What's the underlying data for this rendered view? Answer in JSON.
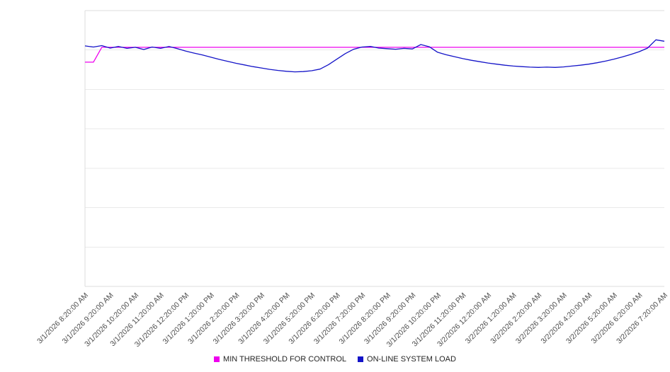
{
  "legend": {
    "items": [
      {
        "label": "MIN THRESHOLD FOR CONTROL",
        "color": "#ee00ee"
      },
      {
        "label": "ON-LINE SYSTEM LOAD",
        "color": "#1414c8"
      }
    ]
  },
  "chart_data": {
    "type": "line",
    "title": "",
    "xlabel": "",
    "ylabel": "",
    "legend_position": "bottom",
    "grid": true,
    "grid_divisions": 7,
    "ylim": [
      0,
      100
    ],
    "y_axis_tick_labels_visible": false,
    "categories": [
      "3/1/2026 8:20:00 AM",
      "3/1/2026 9:20:00 AM",
      "3/1/2026 10:20:00 AM",
      "3/1/2026 11:20:00 AM",
      "3/1/2026 12:20:00 PM",
      "3/1/2026 1:20:00 PM",
      "3/1/2026 2:20:00 PM",
      "3/1/2026 3:20:00 PM",
      "3/1/2026 4:20:00 PM",
      "3/1/2026 5:20:00 PM",
      "3/1/2026 6:20:00 PM",
      "3/1/2026 7:20:00 PM",
      "3/1/2026 8:20:00 PM",
      "3/1/2026 9:20:00 PM",
      "3/1/2026 10:20:00 PM",
      "3/1/2026 11:20:00 PM",
      "3/2/2026 12:20:00 AM",
      "3/2/2026 1:20:00 AM",
      "3/2/2026 2:20:00 AM",
      "3/2/2026 3:20:00 AM",
      "3/2/2026 4:20:00 AM",
      "3/2/2026 5:20:00 AM",
      "3/2/2026 6:20:00 AM",
      "3/2/2026 7:20:00 AM"
    ],
    "points_per_hour": 3,
    "series": [
      {
        "name": "MIN THRESHOLD FOR CONTROL",
        "color": "#ee00ee",
        "values": [
          81.3,
          81.3,
          86.7,
          86.7,
          86.7,
          86.7,
          86.7,
          86.7,
          86.7,
          86.7,
          86.7,
          86.7,
          86.7,
          86.7,
          86.7,
          86.7,
          86.7,
          86.7,
          86.7,
          86.7,
          86.7,
          86.7,
          86.7,
          86.7,
          86.7,
          86.7,
          86.7,
          86.7,
          86.7,
          86.7,
          86.7,
          86.7,
          86.7,
          86.7,
          86.7,
          86.7,
          86.7,
          86.7,
          86.7,
          86.7,
          86.7,
          86.7,
          86.7,
          86.7,
          86.7,
          86.7,
          86.7,
          86.7,
          86.7,
          86.7,
          86.7,
          86.7,
          86.7,
          86.7,
          86.7,
          86.7,
          86.7,
          86.7,
          86.7,
          86.7,
          86.7,
          86.7,
          86.7,
          86.7,
          86.7,
          86.7,
          86.7,
          86.7,
          86.7,
          86.7
        ]
      },
      {
        "name": "ON-LINE SYSTEM LOAD",
        "color": "#1414c8",
        "values": [
          87.2,
          86.8,
          87.3,
          86.4,
          87.0,
          86.3,
          86.7,
          85.9,
          86.8,
          86.3,
          87.0,
          86.2,
          85.3,
          84.6,
          83.9,
          83.1,
          82.3,
          81.6,
          80.9,
          80.3,
          79.7,
          79.2,
          78.7,
          78.3,
          78.0,
          77.8,
          77.9,
          78.2,
          78.8,
          80.4,
          82.4,
          84.4,
          86.0,
          86.8,
          87.0,
          86.4,
          86.2,
          86.0,
          86.3,
          86.1,
          87.7,
          86.9,
          84.9,
          84.0,
          83.3,
          82.6,
          82.0,
          81.5,
          81.0,
          80.6,
          80.2,
          79.9,
          79.7,
          79.5,
          79.4,
          79.5,
          79.4,
          79.6,
          79.9,
          80.2,
          80.6,
          81.1,
          81.7,
          82.4,
          83.2,
          84.1,
          85.1,
          86.4,
          89.4,
          88.9
        ]
      }
    ]
  }
}
